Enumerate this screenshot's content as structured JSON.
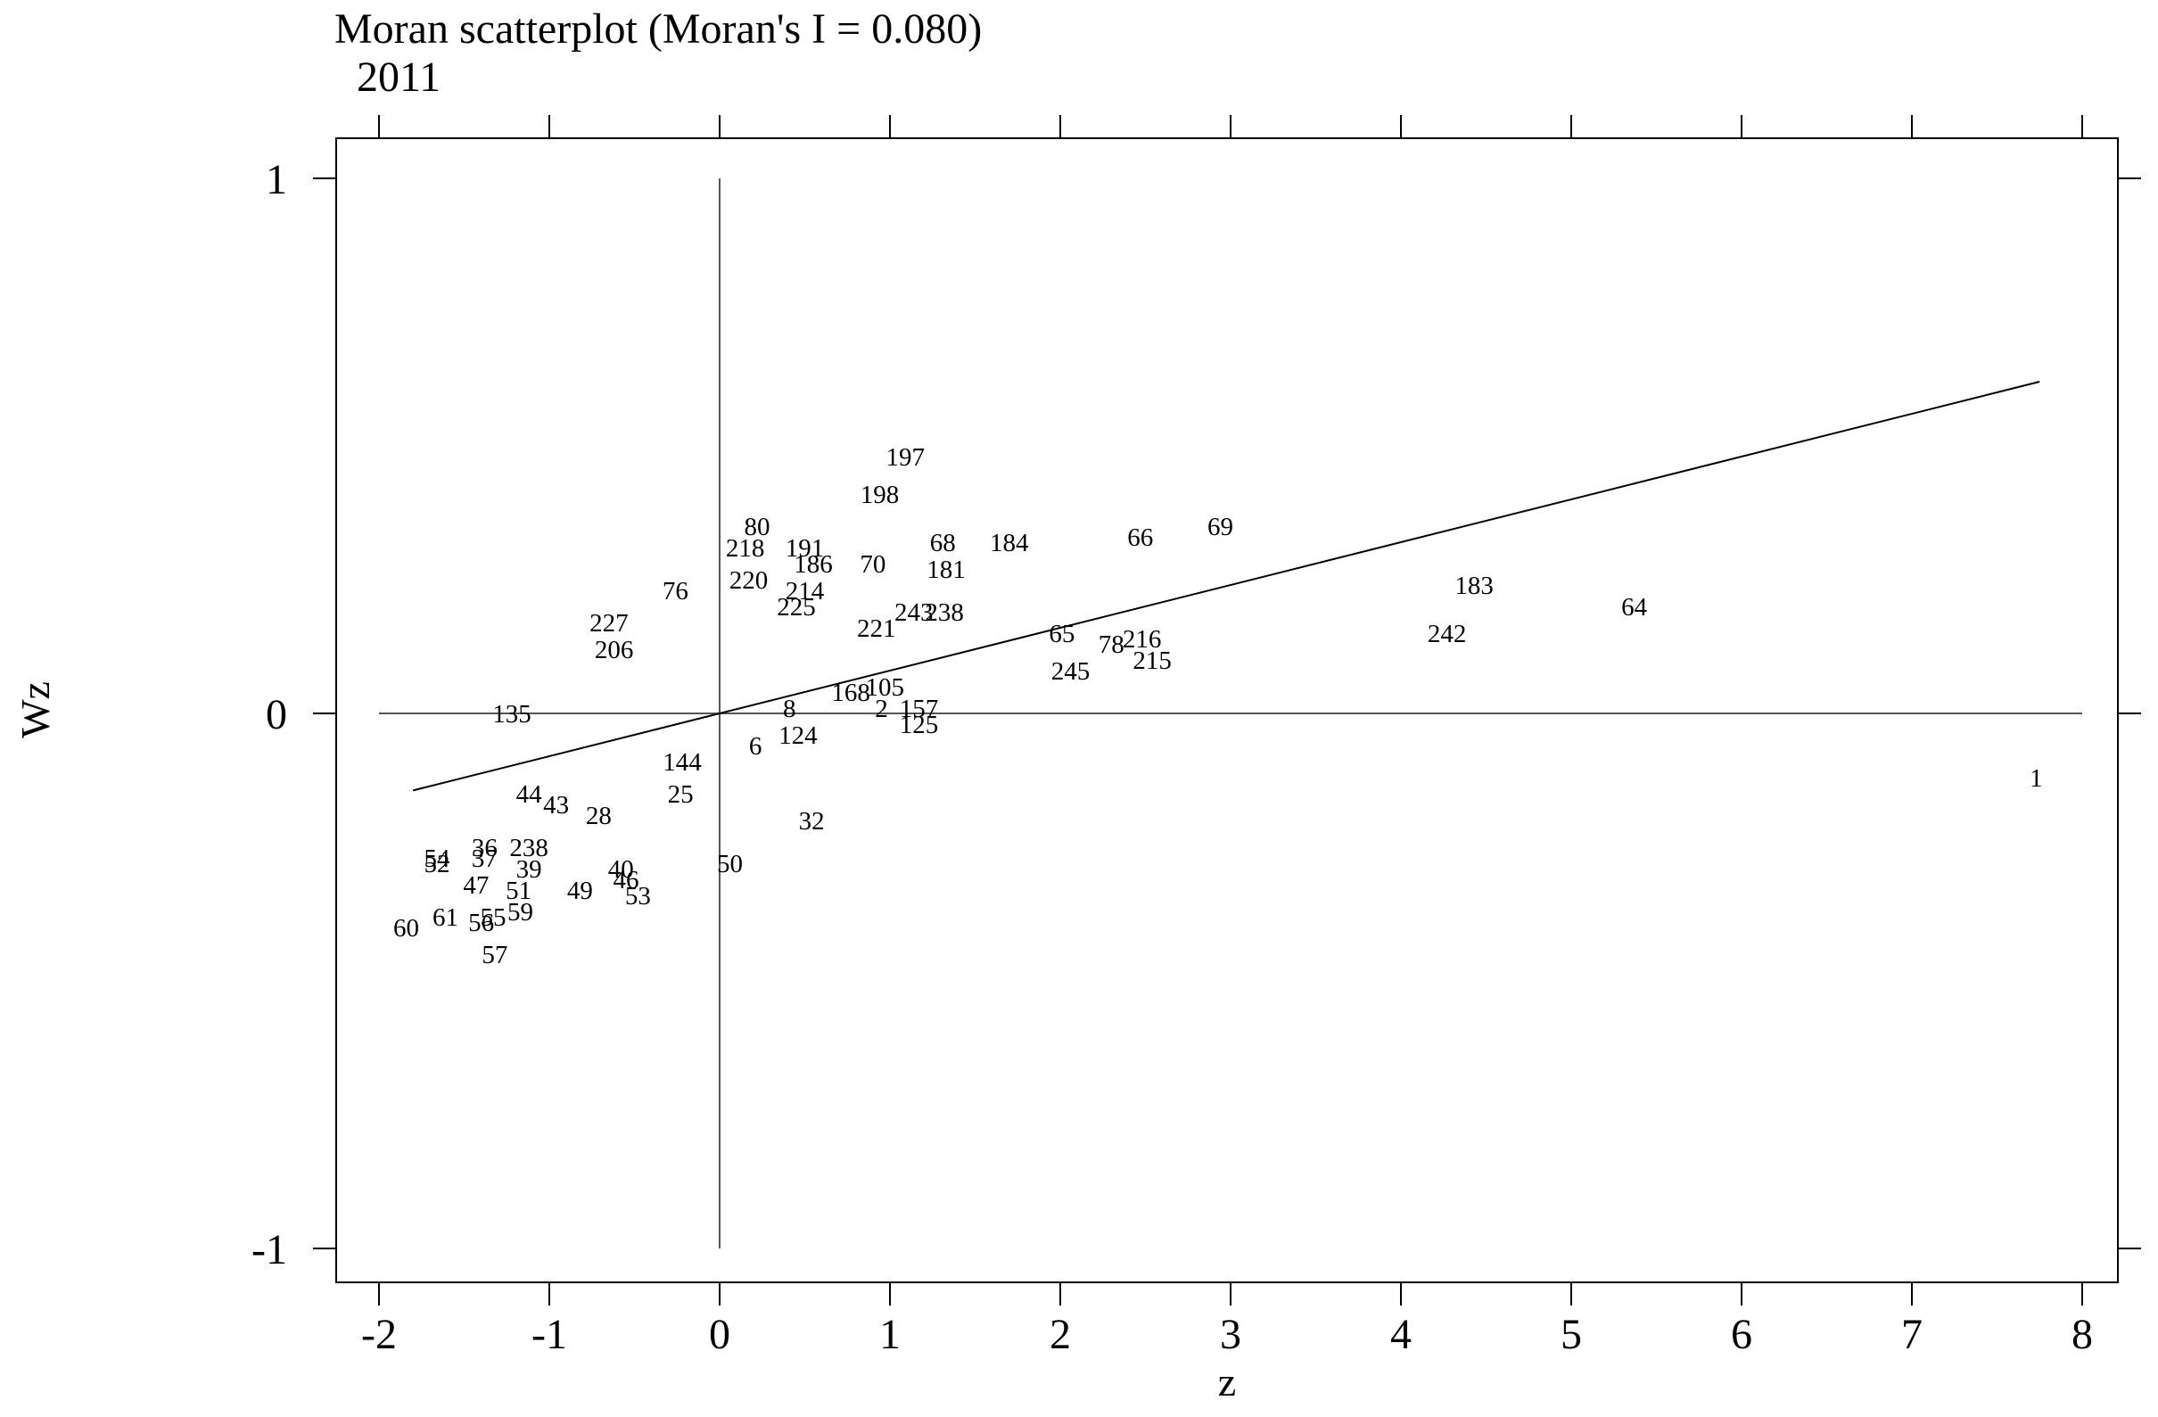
{
  "chart_data": {
    "type": "scatter",
    "title": "Moran scatterplot (Moran's I = 0.080)",
    "subtitle": "2011",
    "xlabel": "z",
    "ylabel": "Wz",
    "xlim": [
      -2.25,
      8.25
    ],
    "ylim": [
      -1.08,
      1.08
    ],
    "xticks": [
      -2,
      -1,
      0,
      1,
      2,
      3,
      4,
      5,
      6,
      7,
      8
    ],
    "xtick_labels": [
      "-2",
      "-1",
      "0",
      "1",
      "2",
      "3",
      "4",
      "5",
      "6",
      "7",
      "8"
    ],
    "yticks": [
      1,
      0,
      -1
    ],
    "ytick_labels": [
      "1",
      "0",
      "-1"
    ],
    "grid": false,
    "legend": "none",
    "reference_lines": {
      "x": 0,
      "y": 0
    },
    "fit_line": {
      "slope": 0.08,
      "x_range": [
        -1.8,
        7.75
      ]
    },
    "points": [
      {
        "label": "1",
        "x": 7.73,
        "y": -0.12
      },
      {
        "label": "64",
        "x": 5.37,
        "y": 0.2
      },
      {
        "label": "183",
        "x": 4.43,
        "y": 0.24
      },
      {
        "label": "242",
        "x": 4.27,
        "y": 0.15
      },
      {
        "label": "69",
        "x": 2.94,
        "y": 0.35
      },
      {
        "label": "66",
        "x": 2.47,
        "y": 0.33
      },
      {
        "label": "216",
        "x": 2.48,
        "y": 0.14
      },
      {
        "label": "215",
        "x": 2.54,
        "y": 0.1
      },
      {
        "label": "78",
        "x": 2.3,
        "y": 0.13
      },
      {
        "label": "65",
        "x": 2.01,
        "y": 0.15
      },
      {
        "label": "245",
        "x": 2.06,
        "y": 0.08
      },
      {
        "label": "184",
        "x": 1.7,
        "y": 0.32
      },
      {
        "label": "68",
        "x": 1.31,
        "y": 0.32
      },
      {
        "label": "181",
        "x": 1.33,
        "y": 0.27
      },
      {
        "label": "238",
        "x": 1.32,
        "y": 0.19
      },
      {
        "label": "243",
        "x": 1.14,
        "y": 0.19
      },
      {
        "label": "197",
        "x": 1.09,
        "y": 0.48
      },
      {
        "label": "198",
        "x": 0.94,
        "y": 0.41
      },
      {
        "label": "70",
        "x": 0.9,
        "y": 0.28
      },
      {
        "label": "80",
        "x": 0.22,
        "y": 0.35
      },
      {
        "label": "218",
        "x": 0.15,
        "y": 0.31
      },
      {
        "label": "191",
        "x": 0.5,
        "y": 0.31
      },
      {
        "label": "186",
        "x": 0.55,
        "y": 0.28
      },
      {
        "label": "220",
        "x": 0.17,
        "y": 0.25
      },
      {
        "label": "214",
        "x": 0.5,
        "y": 0.23
      },
      {
        "label": "221",
        "x": 0.92,
        "y": 0.16
      },
      {
        "label": "225",
        "x": 0.45,
        "y": 0.2
      },
      {
        "label": "76",
        "x": -0.26,
        "y": 0.23
      },
      {
        "label": "227",
        "x": -0.65,
        "y": 0.17
      },
      {
        "label": "206",
        "x": -0.62,
        "y": 0.12
      },
      {
        "label": "135",
        "x": -1.22,
        "y": 0.0
      },
      {
        "label": "157",
        "x": 1.17,
        "y": 0.01
      },
      {
        "label": "125",
        "x": 1.17,
        "y": -0.02
      },
      {
        "label": "105",
        "x": 0.97,
        "y": 0.05
      },
      {
        "label": "168",
        "x": 0.77,
        "y": 0.04
      },
      {
        "label": "2",
        "x": 0.95,
        "y": 0.01
      },
      {
        "label": "124",
        "x": 0.46,
        "y": -0.04
      },
      {
        "label": "8",
        "x": 0.41,
        "y": 0.01
      },
      {
        "label": "6",
        "x": 0.21,
        "y": -0.06
      },
      {
        "label": "144",
        "x": -0.22,
        "y": -0.09
      },
      {
        "label": "25",
        "x": -0.23,
        "y": -0.15
      },
      {
        "label": "32",
        "x": 0.54,
        "y": -0.2
      },
      {
        "label": "50",
        "x": 0.06,
        "y": -0.28
      },
      {
        "label": "44",
        "x": -1.12,
        "y": -0.15
      },
      {
        "label": "43",
        "x": -0.96,
        "y": -0.17
      },
      {
        "label": "28",
        "x": -0.71,
        "y": -0.19
      },
      {
        "label": "238",
        "x": -1.12,
        "y": -0.25
      },
      {
        "label": "36",
        "x": -1.38,
        "y": -0.25
      },
      {
        "label": "54",
        "x": -1.66,
        "y": -0.27
      },
      {
        "label": "52",
        "x": -1.66,
        "y": -0.28
      },
      {
        "label": "37",
        "x": -1.38,
        "y": -0.27
      },
      {
        "label": "39",
        "x": -1.12,
        "y": -0.29
      },
      {
        "label": "47",
        "x": -1.43,
        "y": -0.32
      },
      {
        "label": "40",
        "x": -0.58,
        "y": -0.29
      },
      {
        "label": "46",
        "x": -0.55,
        "y": -0.31
      },
      {
        "label": "53",
        "x": -0.48,
        "y": -0.34
      },
      {
        "label": "49",
        "x": -0.82,
        "y": -0.33
      },
      {
        "label": "51",
        "x": -1.18,
        "y": -0.33
      },
      {
        "label": "59",
        "x": -1.17,
        "y": -0.37
      },
      {
        "label": "55",
        "x": -1.33,
        "y": -0.38
      },
      {
        "label": "56",
        "x": -1.4,
        "y": -0.39
      },
      {
        "label": "61",
        "x": -1.61,
        "y": -0.38
      },
      {
        "label": "60",
        "x": -1.84,
        "y": -0.4
      },
      {
        "label": "57",
        "x": -1.32,
        "y": -0.45
      }
    ]
  }
}
